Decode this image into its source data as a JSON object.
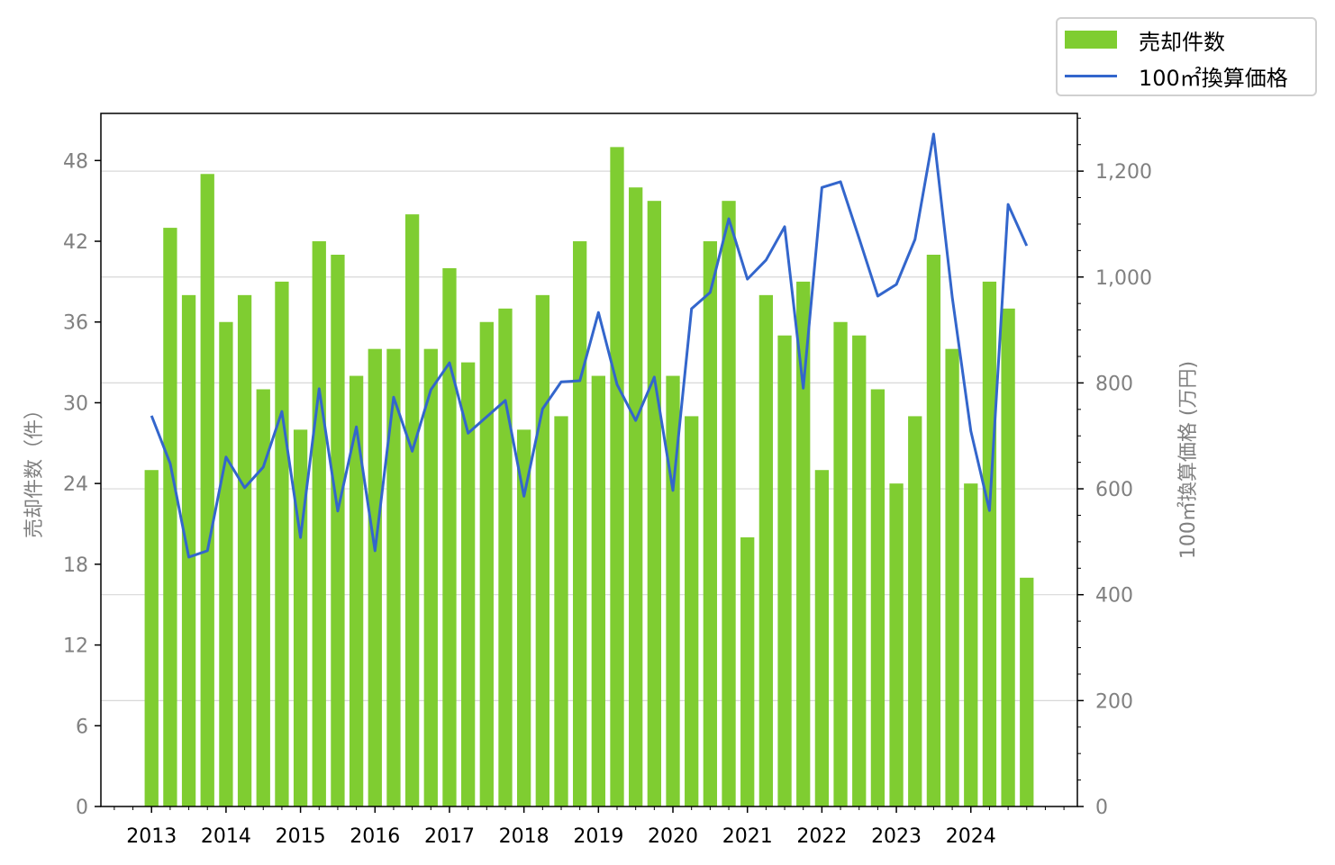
{
  "chart_data": {
    "type": "bar+line",
    "categories_years": [
      "2013",
      "2014",
      "2015",
      "2016",
      "2017",
      "2018",
      "2019",
      "2020",
      "2021",
      "2022",
      "2023",
      "2024"
    ],
    "x_start": 2013,
    "periods_per_year": 4,
    "series": [
      {
        "name": "売却件数",
        "type": "bar",
        "axis": "left",
        "color": "#7fcd31",
        "values": [
          25,
          43,
          38,
          47,
          36,
          38,
          31,
          39,
          28,
          42,
          41,
          32,
          34,
          34,
          44,
          34,
          40,
          33,
          36,
          37,
          28,
          38,
          29,
          42,
          32,
          49,
          46,
          45,
          32,
          29,
          42,
          45,
          20,
          38,
          35,
          39,
          25,
          36,
          35,
          31,
          24,
          29,
          41,
          34,
          24,
          39,
          37,
          17
        ]
      },
      {
        "name": "100㎡換算価格",
        "type": "line",
        "axis": "right",
        "color": "#3366cc",
        "values": [
          738,
          648,
          471,
          483,
          660,
          602,
          641,
          746,
          508,
          789,
          558,
          717,
          483,
          773,
          671,
          787,
          838,
          705,
          736,
          767,
          586,
          751,
          802,
          804,
          933,
          797,
          729,
          811,
          597,
          940,
          971,
          1110,
          996,
          1032,
          1095,
          790,
          1169,
          1180,
          1073,
          964,
          986,
          1071,
          1270,
          962,
          709,
          559,
          1137,
          1059
        ]
      }
    ],
    "left_axis": {
      "label": "売却件数（件）",
      "ticks": [
        0,
        6,
        12,
        18,
        24,
        30,
        36,
        42,
        48
      ],
      "tick_labels": [
        "0",
        "6",
        "12",
        "18",
        "24",
        "30",
        "36",
        "42",
        "48"
      ],
      "range": [
        0,
        51.5
      ]
    },
    "right_axis": {
      "label": "100㎡換算価格 (万円)",
      "ticks": [
        0,
        200,
        400,
        600,
        800,
        1000,
        1200
      ],
      "tick_labels": [
        "0",
        "200",
        "400",
        "600",
        "800",
        "1,000",
        "1,200"
      ],
      "range": [
        0,
        1309
      ]
    },
    "x_range": [
      2012.32,
      2025.43
    ],
    "grid": "horizontal (right axis)",
    "legend": {
      "placement": "top-right outside",
      "entries": [
        "売却件数",
        "100㎡換算価格"
      ]
    }
  }
}
